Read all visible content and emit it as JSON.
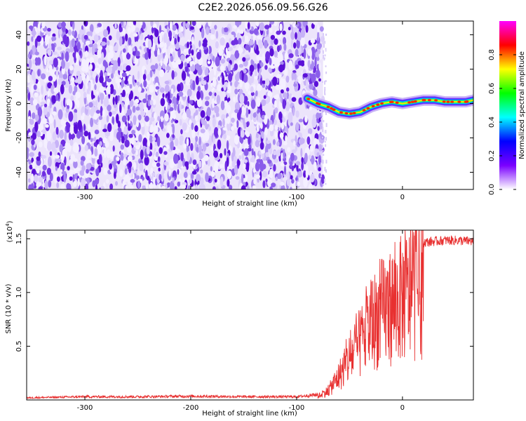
{
  "title": "C2E2.2026.056.09.56.G26",
  "chart_data": [
    {
      "type": "heatmap",
      "xlabel": "Height of straight line (km)",
      "ylabel": "Frequency (Hz)",
      "xlim": [
        -355,
        67
      ],
      "ylim": [
        -50,
        48
      ],
      "xticks": [
        -300,
        -200,
        -100,
        0
      ],
      "yticks": [
        -40,
        -20,
        0,
        20,
        40
      ],
      "xtick_labels": [
        "-300",
        "-200",
        "-100",
        "0"
      ],
      "ytick_labels": [
        "-40",
        "-20",
        "0",
        "20",
        "40"
      ],
      "noise_region_x": [
        -355,
        -75
      ],
      "signal_track": {
        "x": [
          -90,
          -80,
          -70,
          -60,
          -50,
          -40,
          -30,
          -20,
          -10,
          0,
          10,
          20,
          30,
          40,
          50,
          60,
          67
        ],
        "y": [
          3,
          0,
          -2,
          -5,
          -6,
          -5,
          -2,
          0,
          1,
          0,
          1,
          2,
          2,
          1,
          1,
          1,
          2
        ]
      },
      "colorbar": {
        "label": "Normalized spectral amplitude",
        "ticks": [
          0.0,
          0.2,
          0.4,
          0.6,
          0.8
        ],
        "tick_labels": [
          "0.0",
          "0.2",
          "0.4",
          "0.6",
          "0.8"
        ],
        "range": [
          0,
          1
        ],
        "colors": [
          "#ffffff",
          "#7a00ff",
          "#0000ff",
          "#00ffff",
          "#00ff00",
          "#ffff00",
          "#ff0000",
          "#ff00ff"
        ]
      }
    },
    {
      "type": "line",
      "xlabel": "Height of straight line (km)",
      "ylabel": "SNR (10 * v/v)",
      "exponent_label": "(x10",
      "exponent_sup": "4",
      "exponent_close": ")",
      "xlim": [
        -355,
        67
      ],
      "ylim": [
        0,
        1.58
      ],
      "xticks": [
        -300,
        -200,
        -100,
        0
      ],
      "yticks": [
        0.5,
        1.0,
        1.5
      ],
      "xtick_labels": [
        "-300",
        "-200",
        "-100",
        "0"
      ],
      "ytick_labels": [
        "0.5",
        "1.0",
        "1.5"
      ],
      "series": [
        {
          "name": "SNR",
          "color": "#e83030",
          "envelope_x": [
            -355,
            -300,
            -250,
            -200,
            -150,
            -100,
            -80,
            -70,
            -60,
            -50,
            -40,
            -30,
            -20,
            -10,
            0,
            10,
            20,
            30,
            40,
            50,
            67
          ],
          "envelope_y": [
            0.02,
            0.03,
            0.03,
            0.035,
            0.03,
            0.03,
            0.05,
            0.12,
            0.32,
            0.55,
            0.75,
            1.0,
            1.15,
            1.25,
            1.35,
            1.43,
            1.48,
            1.49,
            1.5,
            1.5,
            1.49
          ]
        }
      ]
    }
  ]
}
